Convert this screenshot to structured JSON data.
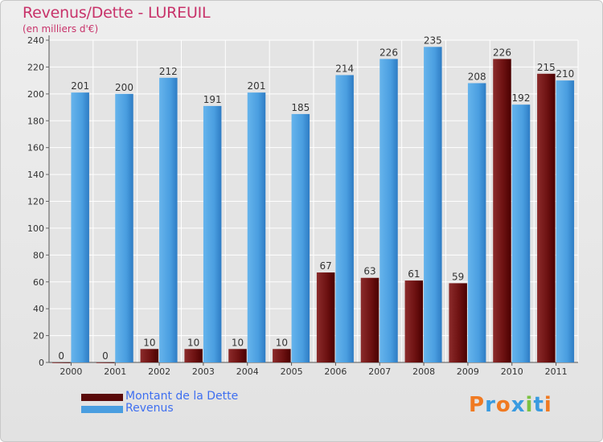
{
  "header": {
    "title": "Revenus/Dette - LUREUIL",
    "subtitle": "(en milliers d'€)"
  },
  "legend": {
    "debt_label": "Montant de la Dette",
    "revenue_label": "Revenus"
  },
  "logo": {
    "text": "Proxiti",
    "letter_colors": [
      "#f07a22",
      "#3a9be0",
      "#f07a22",
      "#3a9be0",
      "#7cc243",
      "#3a9be0",
      "#f07a22"
    ]
  },
  "colors": {
    "debt": "#7a1a1a",
    "debt_dark": "#4a0000",
    "revenue": "#5aaae6",
    "revenue_dark": "#2e7cc4",
    "title": "#c8336a",
    "legend_text": "#3e6ff0"
  },
  "chart_data": {
    "type": "bar",
    "categories": [
      "2000",
      "2001",
      "2002",
      "2003",
      "2004",
      "2005",
      "2006",
      "2007",
      "2008",
      "2009",
      "2010",
      "2011"
    ],
    "series": [
      {
        "name": "Montant de la Dette",
        "values": [
          0,
          0,
          10,
          10,
          10,
          10,
          67,
          63,
          61,
          59,
          226,
          215
        ]
      },
      {
        "name": "Revenus",
        "values": [
          201,
          200,
          212,
          191,
          201,
          185,
          214,
          226,
          235,
          208,
          192,
          210
        ]
      }
    ],
    "yticks": [
      0,
      20,
      40,
      60,
      80,
      100,
      120,
      140,
      160,
      180,
      200,
      220,
      240
    ],
    "ylim": [
      0,
      240
    ],
    "grid": true,
    "legend_position": "bottom-left"
  }
}
